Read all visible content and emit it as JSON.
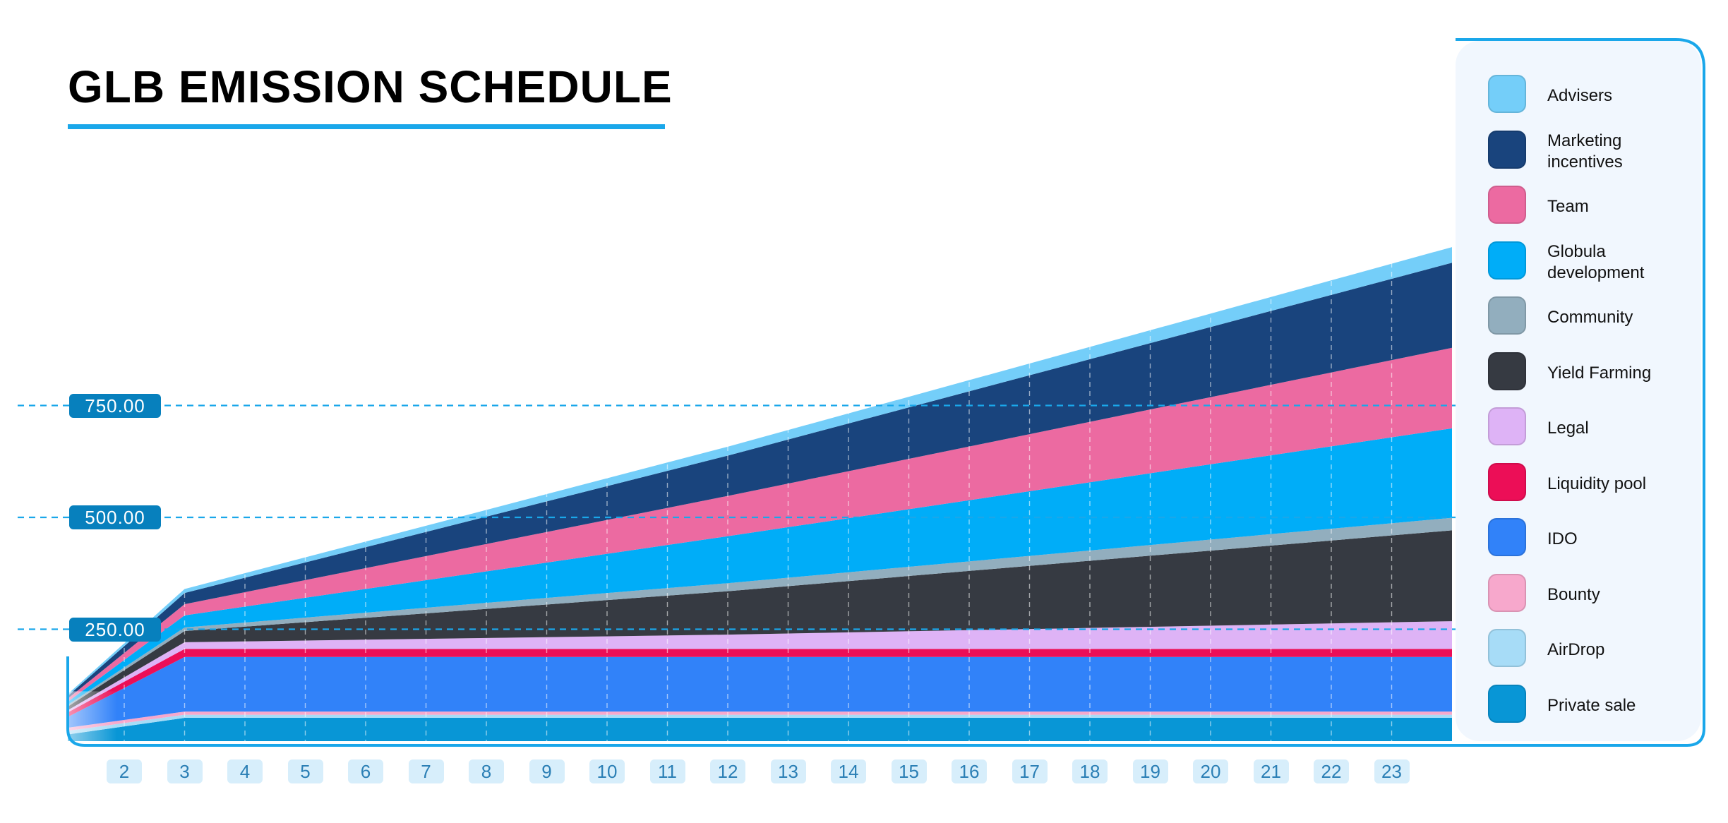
{
  "title": "GLB EMISSION SCHEDULE",
  "colors": {
    "accent": "#1aa7ea",
    "pill": "#0780bd",
    "tick_bg": "#d7eefb"
  },
  "chart_data": {
    "type": "area",
    "title": "GLB EMISSION SCHEDULE",
    "stacked": true,
    "y_ticks": [
      "250.00",
      "500.00",
      "750.00"
    ],
    "y_tick_values": [
      250,
      500,
      750
    ],
    "ylim": [
      0,
      1000
    ],
    "x_ticks": [
      2,
      3,
      4,
      5,
      6,
      7,
      8,
      9,
      10,
      11,
      12,
      13,
      14,
      15,
      16,
      17,
      18,
      19,
      20,
      21,
      22,
      23
    ],
    "x": [
      1,
      3,
      12,
      24
    ],
    "xlim": [
      1,
      24
    ],
    "legend_position": "right",
    "grid": "vertical dashed lines, horizontal dashed lines at y ticks",
    "series": [
      {
        "name": "Private sale",
        "color": "#0896d6",
        "values": [
          15,
          52,
          52,
          52
        ]
      },
      {
        "name": "AirDrop",
        "color": "#a7dcf7",
        "values": [
          8,
          7,
          7,
          7
        ]
      },
      {
        "name": "Bounty",
        "color": "#f7a8cc",
        "values": [
          7,
          7,
          7,
          7
        ]
      },
      {
        "name": "IDO",
        "color": "#3182f9",
        "values": [
          24,
          122,
          122,
          122
        ]
      },
      {
        "name": "Liquidity pool",
        "color": "#ec0e57",
        "values": [
          10,
          18,
          18,
          18
        ]
      },
      {
        "name": "Legal",
        "color": "#deb3f6",
        "values": [
          5,
          15,
          32,
          62
        ]
      },
      {
        "name": "Yield Farming",
        "color": "#363a42",
        "values": [
          8,
          25,
          97,
          203
        ]
      },
      {
        "name": "Community",
        "color": "#92aebe",
        "values": [
          4,
          8,
          18,
          28
        ]
      },
      {
        "name": "Globula development",
        "color": "#00adf8",
        "values": [
          7,
          27,
          105,
          200
        ]
      },
      {
        "name": "Team",
        "color": "#ec6aa1",
        "values": [
          7,
          25,
          90,
          180
        ]
      },
      {
        "name": "Marketing incentives",
        "color": "#19447d",
        "values": [
          6,
          25,
          90,
          190
        ]
      },
      {
        "name": "Advisers",
        "color": "#74cef9",
        "values": [
          4,
          9,
          20,
          35
        ]
      }
    ]
  },
  "legend": [
    {
      "label": "Advisers",
      "color": "#74cef9"
    },
    {
      "label": "Marketing\nincentives",
      "color": "#19447d"
    },
    {
      "label": "Team",
      "color": "#ec6aa1"
    },
    {
      "label": "Globula\ndevelopment",
      "color": "#00adf8"
    },
    {
      "label": "Community",
      "color": "#92aebe"
    },
    {
      "label": "Yield Farming",
      "color": "#363a42"
    },
    {
      "label": "Legal",
      "color": "#deb3f6"
    },
    {
      "label": "Liquidity pool",
      "color": "#ec0e57"
    },
    {
      "label": "IDO",
      "color": "#3182f9"
    },
    {
      "label": "Bounty",
      "color": "#f7a8cc"
    },
    {
      "label": "AirDrop",
      "color": "#a7dcf7"
    },
    {
      "label": "Private sale",
      "color": "#0896d6"
    }
  ]
}
